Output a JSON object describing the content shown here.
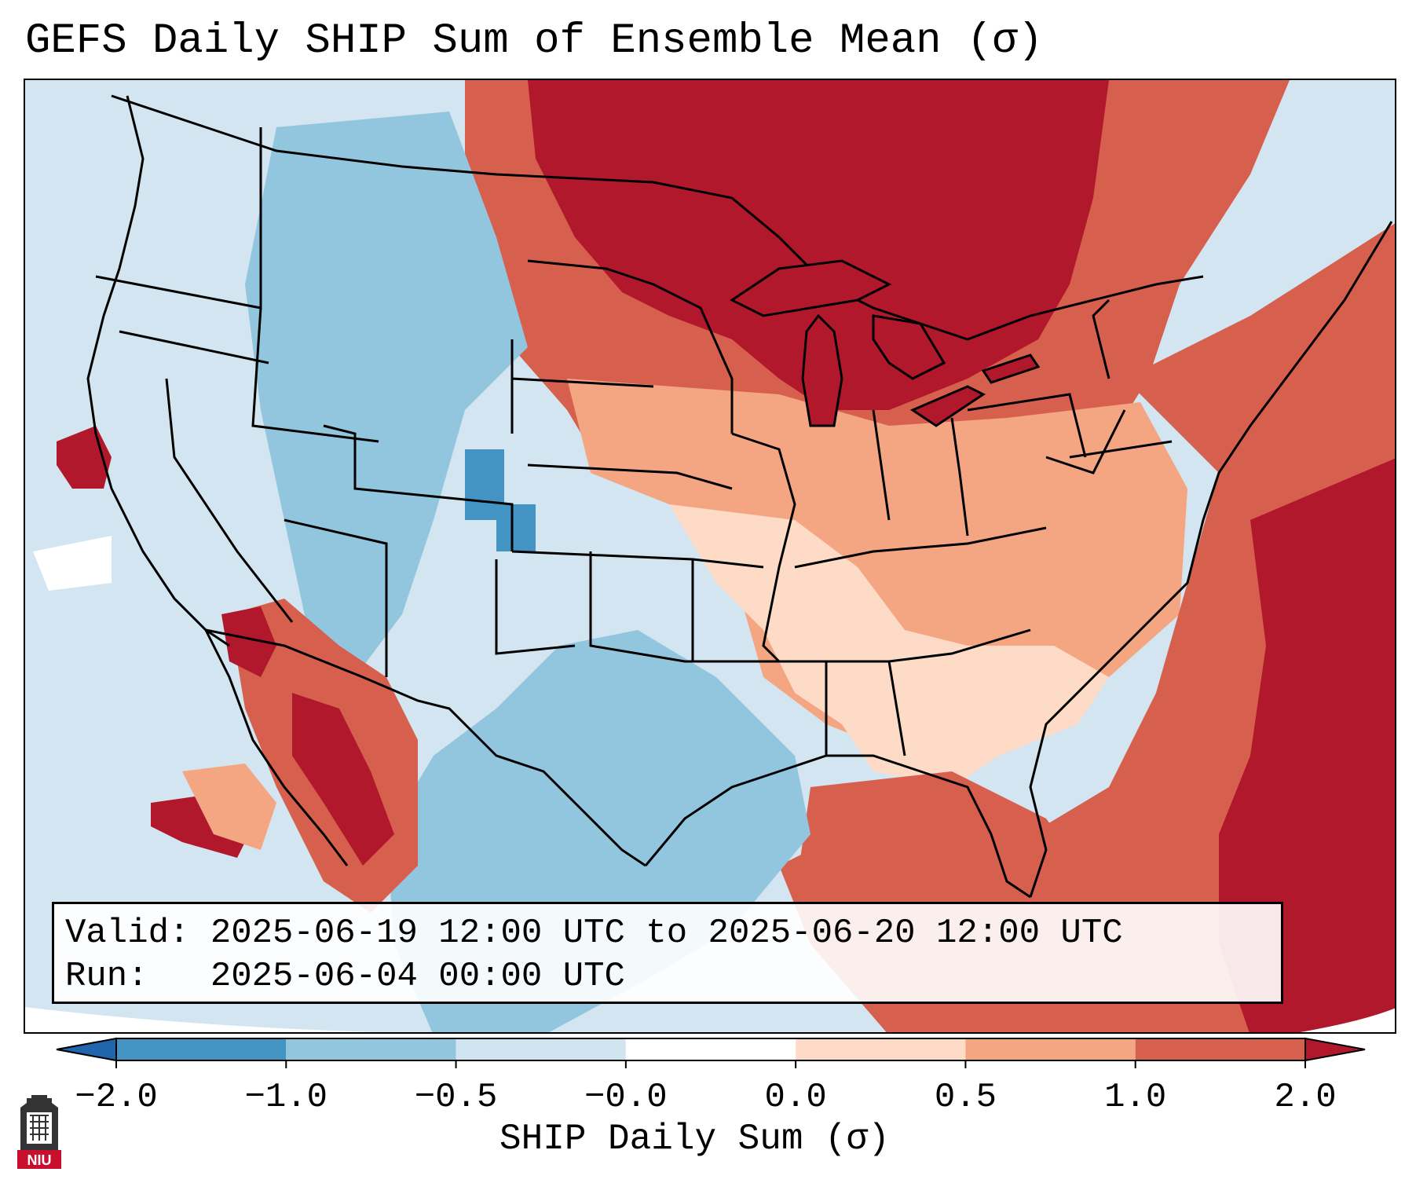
{
  "title": "GEFS Daily SHIP Sum of Ensemble Mean (σ)",
  "info": {
    "valid_label": "Valid:",
    "valid_value": "2025-06-19 12:00 UTC to 2025-06-20 12:00 UTC",
    "run_label": "Run:",
    "run_value": "2025-06-04 00:00 UTC"
  },
  "colorbar": {
    "label": "SHIP Daily Sum (σ)",
    "ticks": [
      "−2.0",
      "−1.0",
      "−0.5",
      "−0.0",
      "0.0",
      "0.5",
      "1.0",
      "2.0"
    ],
    "colors": [
      "#4393c3",
      "#92c5de",
      "#d1e5f0",
      "#f7f7f7",
      "#fddbc7",
      "#f4a582",
      "#d6604d",
      "#b2182b"
    ],
    "under_color": "#2166ac",
    "over_color": "#b2182b"
  },
  "logo": {
    "text": "NIU"
  }
}
